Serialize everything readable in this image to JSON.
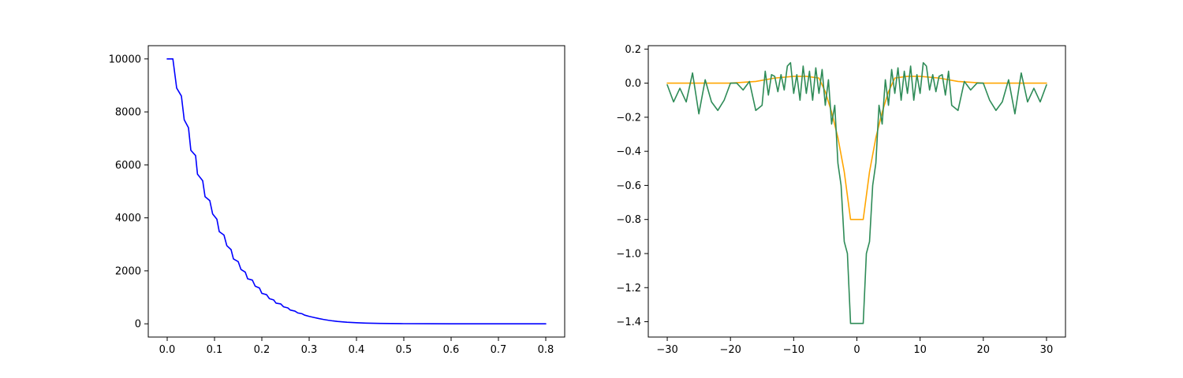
{
  "chart_data": [
    {
      "type": "line",
      "title": "",
      "xlabel": "",
      "ylabel": "",
      "xlim": [
        -0.04,
        0.84
      ],
      "ylim": [
        -500,
        10500
      ],
      "xticks": [
        "0.0",
        "0.1",
        "0.2",
        "0.3",
        "0.4",
        "0.5",
        "0.6",
        "0.7",
        "0.8"
      ],
      "yticks": [
        "0",
        "2000",
        "4000",
        "6000",
        "8000",
        "10000"
      ],
      "grid": false,
      "legend": "none",
      "series": [
        {
          "color": "#0000ff",
          "x": [
            0.0,
            0.012,
            0.02,
            0.03,
            0.036,
            0.045,
            0.05,
            0.06,
            0.064,
            0.075,
            0.08,
            0.09,
            0.096,
            0.105,
            0.11,
            0.12,
            0.126,
            0.135,
            0.14,
            0.15,
            0.156,
            0.165,
            0.17,
            0.18,
            0.186,
            0.195,
            0.2,
            0.21,
            0.216,
            0.225,
            0.23,
            0.24,
            0.246,
            0.255,
            0.26,
            0.27,
            0.276,
            0.285,
            0.29,
            0.3,
            0.31,
            0.32,
            0.33,
            0.34,
            0.35,
            0.36,
            0.38,
            0.4,
            0.42,
            0.45,
            0.5,
            0.55,
            0.6,
            0.7,
            0.8
          ],
          "y": [
            10000,
            10000,
            8900,
            8600,
            7700,
            7400,
            6550,
            6350,
            5650,
            5400,
            4800,
            4650,
            4150,
            3950,
            3480,
            3350,
            2950,
            2800,
            2450,
            2350,
            2050,
            1950,
            1700,
            1650,
            1420,
            1350,
            1150,
            1100,
            950,
            900,
            780,
            750,
            640,
            600,
            520,
            480,
            410,
            380,
            330,
            280,
            240,
            200,
            165,
            135,
            110,
            90,
            60,
            40,
            26,
            14,
            5,
            2,
            1,
            0.3,
            0.1
          ]
        }
      ]
    },
    {
      "type": "line",
      "title": "",
      "xlabel": "",
      "ylabel": "",
      "xlim": [
        -33,
        33
      ],
      "ylim": [
        -1.49,
        0.22
      ],
      "xticks": [
        "−30",
        "−20",
        "−10",
        "0",
        "10",
        "20",
        "30"
      ],
      "yticks": [
        "0.2",
        "0.0",
        "−0.2",
        "−0.4",
        "−0.6",
        "−0.8",
        "−1.0",
        "−1.2",
        "−1.4"
      ],
      "grid": false,
      "legend": "none",
      "series": [
        {
          "color": "#ffa500",
          "x": [
            -30,
            -25,
            -20,
            -16,
            -13,
            -10,
            -8,
            -6,
            -5,
            -4,
            -3,
            -2,
            -1,
            0,
            1,
            2,
            3,
            4,
            5,
            6,
            8,
            10,
            13,
            16,
            20,
            25,
            30
          ],
          "y": [
            0.0,
            0.0,
            0.0,
            0.01,
            0.03,
            0.04,
            0.04,
            0.03,
            -0.05,
            -0.17,
            -0.32,
            -0.52,
            -0.8,
            -0.8,
            -0.8,
            -0.52,
            -0.32,
            -0.17,
            -0.05,
            0.03,
            0.04,
            0.04,
            0.03,
            0.01,
            0.0,
            0.0,
            0.0
          ]
        },
        {
          "color": "#2e8b57",
          "x": [
            -30,
            -29,
            -28,
            -27,
            -26,
            -25,
            -24,
            -23,
            -22,
            -21,
            -20,
            -19,
            -18,
            -17,
            -16,
            -15,
            -14.5,
            -14,
            -13.5,
            -13,
            -12.5,
            -12,
            -11.5,
            -11,
            -10.5,
            -10,
            -9.5,
            -9,
            -8.5,
            -8,
            -7.5,
            -7,
            -6.5,
            -6,
            -5.5,
            -5,
            -4.5,
            -4,
            -3.5,
            -3,
            -2.5,
            -2,
            -1.5,
            -1,
            1,
            1.5,
            2,
            2.5,
            3,
            3.5,
            4,
            4.5,
            5,
            5.5,
            6,
            6.5,
            7,
            7.5,
            8,
            8.5,
            9,
            9.5,
            10,
            10.5,
            11,
            11.5,
            12,
            12.5,
            13,
            13.5,
            14,
            14.5,
            15,
            16,
            17,
            18,
            19,
            20,
            21,
            22,
            23,
            24,
            25,
            26,
            27,
            28,
            29,
            30
          ],
          "y": [
            -0.01,
            -0.11,
            -0.03,
            -0.11,
            0.06,
            -0.18,
            0.02,
            -0.11,
            -0.16,
            -0.1,
            0.0,
            0.0,
            -0.04,
            0.01,
            -0.16,
            -0.13,
            0.07,
            -0.07,
            0.05,
            0.04,
            -0.05,
            0.05,
            -0.04,
            0.1,
            0.12,
            -0.06,
            0.05,
            -0.1,
            0.1,
            -0.06,
            0.07,
            -0.1,
            0.09,
            -0.06,
            0.08,
            -0.13,
            0.02,
            -0.24,
            -0.13,
            -0.47,
            -0.6,
            -0.93,
            -1.0,
            -1.41,
            -1.41,
            -1.0,
            -0.93,
            -0.6,
            -0.47,
            -0.13,
            -0.24,
            0.02,
            -0.13,
            0.08,
            -0.06,
            0.09,
            -0.1,
            0.07,
            -0.06,
            0.1,
            -0.1,
            0.05,
            -0.06,
            0.12,
            0.1,
            -0.04,
            0.05,
            -0.05,
            0.04,
            0.05,
            -0.07,
            0.07,
            -0.13,
            -0.16,
            0.01,
            -0.04,
            0.0,
            0.0,
            -0.1,
            -0.16,
            -0.11,
            0.02,
            -0.18,
            0.06,
            -0.11,
            -0.03,
            -0.11,
            -0.01
          ]
        }
      ]
    }
  ]
}
